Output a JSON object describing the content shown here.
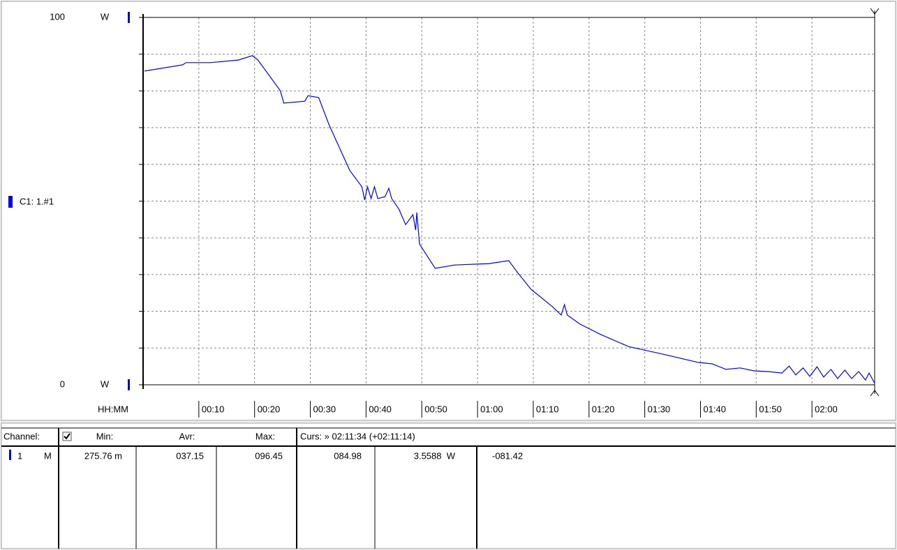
{
  "chart_data": {
    "type": "line",
    "x_label": "HH:MM",
    "y_unit": "W",
    "x": [
      0.25,
      7.1,
      7.7,
      12.1,
      17.1,
      19.6,
      20.6,
      24.6,
      25.25,
      29,
      29.6,
      31.5,
      33.4,
      37.1,
      39.25,
      39.75,
      40.25,
      40.9,
      41.5,
      42.1,
      43.4,
      44.1,
      44.6,
      45.9,
      47.1,
      48.4,
      48.9,
      49.1,
      49.6,
      52.4,
      55.9,
      62.1,
      65.6,
      67.1,
      69.6,
      73.4,
      75,
      75.6,
      76.1,
      78.4,
      82.1,
      87.1,
      93.4,
      99.6,
      102.1,
      104.6,
      107.1,
      109.6,
      112.1,
      114.6,
      115.9,
      117.1,
      118.4,
      119.6,
      120.9,
      122.1,
      123.4,
      124.6,
      125.9,
      127.1,
      128.4,
      129.6,
      130.25,
      131.25
    ],
    "series": [
      {
        "name": "C1: 1.#1",
        "color": "#0000ff",
        "values": [
          85.4,
          87.1,
          87.7,
          87.7,
          88.4,
          89.6,
          88.4,
          80.1,
          76.7,
          77.2,
          78.7,
          78.2,
          70.6,
          58.3,
          53.9,
          50.3,
          53.9,
          50.7,
          53.9,
          50.7,
          51.2,
          53.5,
          50.7,
          47.8,
          43.6,
          46.3,
          42.1,
          46.9,
          38.3,
          31.7,
          32.6,
          33.0,
          33.8,
          30.7,
          26.0,
          21.3,
          19.0,
          21.8,
          19.0,
          16.5,
          13.7,
          10.4,
          8.3,
          6.1,
          5.7,
          4.2,
          4.6,
          3.8,
          3.6,
          3.2,
          5.1,
          2.7,
          4.6,
          2.3,
          4.9,
          2.1,
          4.2,
          1.7,
          4.0,
          1.7,
          3.6,
          1.3,
          3.2,
          0.4
        ]
      }
    ],
    "xlim": [
      0,
      131.25
    ],
    "xticks": [
      {
        "value": 10,
        "label": "00:10"
      },
      {
        "value": 20,
        "label": "00:20"
      },
      {
        "value": 30,
        "label": "00:30"
      },
      {
        "value": 40,
        "label": "00:40"
      },
      {
        "value": 50,
        "label": "00:50"
      },
      {
        "value": 60,
        "label": "01:00"
      },
      {
        "value": 70,
        "label": "01:10"
      },
      {
        "value": 80,
        "label": "01:20"
      },
      {
        "value": 90,
        "label": "01:30"
      },
      {
        "value": 100,
        "label": "01:40"
      },
      {
        "value": 110,
        "label": "01:50"
      },
      {
        "value": 120,
        "label": "02:00"
      }
    ],
    "ylim": [
      0,
      100
    ],
    "yticks": [
      0,
      100
    ],
    "ygrid": [
      0,
      10,
      20,
      30,
      40,
      50,
      60,
      70,
      80,
      90,
      100
    ],
    "grid": true
  },
  "table": {
    "header": [
      "Channel:",
      "Min:",
      "Avr:",
      "Max:",
      "Curs: » 02:11:34 (+02:11:14)"
    ],
    "rows": [
      [
        "1",
        "M",
        "275.76 m",
        "037.15",
        "096.45",
        "084.98",
        "3.5588  W",
        "-081.42"
      ]
    ]
  }
}
